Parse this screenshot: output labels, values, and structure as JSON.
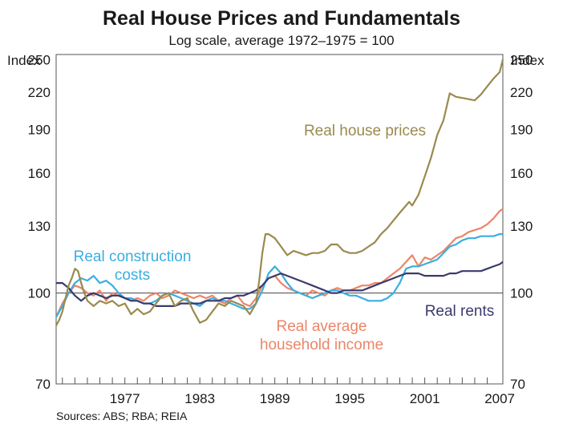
{
  "chart_data": {
    "type": "line",
    "title": "Real House Prices and Fundamentals",
    "subtitle": "Log scale, average 1972–1975 = 100",
    "y_unit_left": "Index",
    "y_unit_right": "Index",
    "y_scale": "log",
    "ylim": [
      70,
      255
    ],
    "xlim": [
      1972.0,
      2007.75
    ],
    "y_ticks": [
      70,
      100,
      130,
      160,
      190,
      220,
      250
    ],
    "x_tick_labels": [
      1977,
      1983,
      1989,
      1995,
      2001,
      2007
    ],
    "x_minor_ticks": "yearly",
    "reference_line": 100,
    "grid": false,
    "source": "Sources: ABS; RBA; REIA",
    "series": [
      {
        "name": "Real house prices",
        "label_lines": [
          "Real house prices"
        ],
        "color": "#9a8a4e",
        "x": [
          1972.0,
          1972.25,
          1972.5,
          1972.75,
          1973.0,
          1973.25,
          1973.5,
          1973.75,
          1974.0,
          1974.25,
          1974.5,
          1974.75,
          1975.0,
          1975.5,
          1976.0,
          1976.5,
          1977.0,
          1977.5,
          1978.0,
          1978.5,
          1979.0,
          1979.5,
          1980.0,
          1980.5,
          1981.0,
          1981.5,
          1982.0,
          1982.5,
          1983.0,
          1983.5,
          1984.0,
          1984.5,
          1985.0,
          1985.5,
          1986.0,
          1986.5,
          1987.0,
          1987.5,
          1988.0,
          1988.25,
          1988.5,
          1988.75,
          1989.0,
          1989.5,
          1990.0,
          1990.5,
          1991.0,
          1991.5,
          1992.0,
          1992.5,
          1993.0,
          1993.5,
          1994.0,
          1994.5,
          1995.0,
          1995.5,
          1996.0,
          1996.5,
          1997.0,
          1997.5,
          1998.0,
          1998.5,
          1999.0,
          1999.5,
          2000.0,
          2000.25,
          2000.5,
          2000.75,
          2001.0,
          2001.5,
          2002.0,
          2002.5,
          2003.0,
          2003.5,
          2004.0,
          2004.5,
          2005.0,
          2005.5,
          2006.0,
          2006.5,
          2007.0,
          2007.5,
          2007.75
        ],
        "values": [
          88,
          90,
          93,
          98,
          103,
          106,
          110,
          109,
          104,
          100,
          97,
          96,
          95,
          97,
          96,
          97,
          95,
          96,
          92,
          94,
          92,
          93,
          96,
          99,
          100,
          95,
          97,
          98,
          93,
          89,
          90,
          93,
          96,
          95,
          97,
          96,
          95,
          92,
          96,
          105,
          117,
          126,
          126,
          124,
          120,
          116,
          118,
          117,
          116,
          117,
          117,
          118,
          121,
          121,
          118,
          117,
          117,
          118,
          120,
          122,
          126,
          129,
          133,
          137,
          141,
          143,
          141,
          144,
          147,
          158,
          170,
          186,
          197,
          219,
          216,
          215,
          214,
          213,
          218,
          225,
          232,
          238,
          250
        ]
      },
      {
        "name": "Real construction costs",
        "label_lines": [
          "Real construction",
          "costs"
        ],
        "color": "#3aaee0",
        "x": [
          1972.0,
          1972.5,
          1973.0,
          1973.5,
          1974.0,
          1974.5,
          1975.0,
          1975.5,
          1976.0,
          1976.5,
          1977.0,
          1977.5,
          1978.0,
          1978.5,
          1979.0,
          1979.5,
          1980.0,
          1980.5,
          1981.0,
          1981.5,
          1982.0,
          1982.5,
          1983.0,
          1983.5,
          1984.0,
          1984.5,
          1985.0,
          1985.5,
          1986.0,
          1986.5,
          1987.0,
          1987.5,
          1988.0,
          1988.5,
          1989.0,
          1989.5,
          1990.0,
          1990.5,
          1991.0,
          1991.5,
          1992.0,
          1992.5,
          1993.0,
          1993.5,
          1994.0,
          1994.5,
          1995.0,
          1995.5,
          1996.0,
          1996.5,
          1997.0,
          1997.5,
          1998.0,
          1998.5,
          1999.0,
          1999.5,
          2000.0,
          2000.5,
          2001.0,
          2001.5,
          2002.0,
          2002.5,
          2003.0,
          2003.5,
          2004.0,
          2004.5,
          2005.0,
          2005.5,
          2006.0,
          2006.5,
          2007.0,
          2007.5,
          2007.75
        ],
        "values": [
          91,
          95,
          100,
          104,
          106,
          105,
          107,
          104,
          105,
          103,
          100,
          98,
          98,
          97,
          96,
          96,
          97,
          99,
          100,
          99,
          98,
          97,
          96,
          95,
          97,
          98,
          97,
          97,
          96,
          95,
          94,
          94,
          96,
          101,
          108,
          111,
          108,
          104,
          101,
          100,
          99,
          98,
          99,
          100,
          101,
          101,
          100,
          99,
          99,
          98,
          97,
          97,
          97,
          98,
          100,
          104,
          110,
          111,
          111,
          112,
          113,
          114,
          117,
          120,
          121,
          123,
          124,
          124,
          125,
          125,
          125,
          126,
          126
        ]
      },
      {
        "name": "Real average household income",
        "label_lines": [
          "Real average",
          "household income"
        ],
        "color": "#ec8568",
        "x": [
          1972.0,
          1972.5,
          1973.0,
          1973.5,
          1974.0,
          1974.5,
          1975.0,
          1975.5,
          1976.0,
          1976.5,
          1977.0,
          1977.5,
          1978.0,
          1978.5,
          1979.0,
          1979.5,
          1980.0,
          1980.5,
          1981.0,
          1981.5,
          1982.0,
          1982.5,
          1983.0,
          1983.5,
          1984.0,
          1984.5,
          1985.0,
          1985.5,
          1986.0,
          1986.5,
          1987.0,
          1987.5,
          1988.0,
          1988.5,
          1989.0,
          1989.5,
          1990.0,
          1990.5,
          1991.0,
          1991.5,
          1992.0,
          1992.5,
          1993.0,
          1993.5,
          1994.0,
          1994.5,
          1995.0,
          1995.5,
          1996.0,
          1996.5,
          1997.0,
          1997.5,
          1998.0,
          1998.5,
          1999.0,
          1999.5,
          2000.0,
          2000.5,
          2001.0,
          2001.5,
          2002.0,
          2002.5,
          2003.0,
          2003.5,
          2004.0,
          2004.5,
          2005.0,
          2005.5,
          2006.0,
          2006.5,
          2007.0,
          2007.5,
          2007.75
        ],
        "values": [
          91,
          96,
          100,
          103,
          102,
          100,
          99,
          101,
          97,
          100,
          99,
          98,
          97,
          98,
          97,
          99,
          100,
          98,
          99,
          101,
          100,
          99,
          98,
          99,
          98,
          99,
          97,
          96,
          98,
          99,
          96,
          95,
          98,
          103,
          106,
          107,
          104,
          102,
          101,
          100,
          99,
          101,
          100,
          99,
          101,
          102,
          101,
          101,
          102,
          103,
          103,
          104,
          104,
          106,
          108,
          110,
          113,
          116,
          111,
          115,
          114,
          116,
          118,
          121,
          124,
          125,
          127,
          128,
          129,
          131,
          134,
          138,
          139
        ]
      },
      {
        "name": "Real rents",
        "label_lines": [
          "Real rents"
        ],
        "color": "#3a3a6e",
        "x": [
          1972.0,
          1972.5,
          1973.0,
          1973.5,
          1974.0,
          1974.5,
          1975.0,
          1975.5,
          1976.0,
          1976.5,
          1977.0,
          1977.5,
          1978.0,
          1978.5,
          1979.0,
          1979.5,
          1980.0,
          1980.5,
          1981.0,
          1981.5,
          1982.0,
          1982.5,
          1983.0,
          1983.5,
          1984.0,
          1984.5,
          1985.0,
          1985.5,
          1986.0,
          1986.5,
          1987.0,
          1987.5,
          1988.0,
          1988.5,
          1989.0,
          1989.5,
          1990.0,
          1990.5,
          1991.0,
          1991.5,
          1992.0,
          1992.5,
          1993.0,
          1993.5,
          1994.0,
          1994.5,
          1995.0,
          1995.5,
          1996.0,
          1996.5,
          1997.0,
          1997.5,
          1998.0,
          1998.5,
          1999.0,
          1999.5,
          2000.0,
          2000.5,
          2001.0,
          2001.5,
          2002.0,
          2002.5,
          2003.0,
          2003.5,
          2004.0,
          2004.5,
          2005.0,
          2005.5,
          2006.0,
          2006.5,
          2007.0,
          2007.5,
          2007.75
        ],
        "values": [
          104,
          104,
          102,
          99,
          97,
          99,
          100,
          99,
          98,
          99,
          99,
          98,
          97,
          97,
          96,
          96,
          95,
          95,
          95,
          95,
          96,
          96,
          96,
          96,
          97,
          97,
          97,
          98,
          98,
          99,
          99,
          100,
          101,
          103,
          106,
          107,
          108,
          107,
          106,
          105,
          104,
          103,
          102,
          101,
          100,
          100,
          101,
          101,
          101,
          101,
          102,
          103,
          104,
          105,
          106,
          107,
          108,
          108,
          108,
          107,
          107,
          107,
          107,
          108,
          108,
          109,
          109,
          109,
          109,
          110,
          111,
          112,
          113
        ]
      }
    ]
  }
}
